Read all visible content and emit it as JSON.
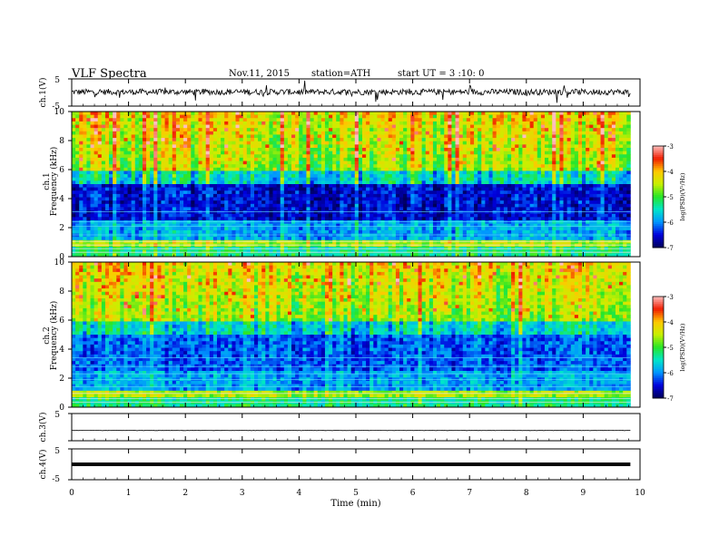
{
  "header": {
    "title": "VLF Spectra",
    "date": "Nov.11, 2015",
    "station": "station=ATH",
    "start": "start UT = 3 :10: 0"
  },
  "chart_data": [
    {
      "type": "line",
      "name": "waveform ch.1",
      "ylabel": "ch.1(V)",
      "ylim": [
        -5,
        5
      ],
      "yticks": [
        "5",
        "-5"
      ],
      "xlim": [
        0,
        10
      ],
      "x_end": 9.83,
      "baseline": 0.2,
      "color": "#000000"
    },
    {
      "type": "heatmap",
      "name": "spectrogram ch.1",
      "channel": "ch.1",
      "ylabel": "Frequency (kHz)",
      "ylim": [
        0,
        10
      ],
      "yticks": [
        "0",
        "2",
        "4",
        "6",
        "8",
        "10"
      ],
      "xlim": [
        0,
        10
      ],
      "x_end": 9.83,
      "colorbar": {
        "label": "log(PSD)(V²/Hz)",
        "range": [
          -7,
          -3
        ],
        "ticks": [
          "-3",
          "-4",
          "-5",
          "-6",
          "-7"
        ]
      }
    },
    {
      "type": "heatmap",
      "name": "spectrogram ch.2",
      "channel": "ch.2",
      "ylabel": "Frequency (kHz)",
      "ylim": [
        0,
        10
      ],
      "yticks": [
        "0",
        "2",
        "4",
        "6",
        "8",
        "10"
      ],
      "xlim": [
        0,
        10
      ],
      "x_end": 9.83,
      "colorbar": {
        "label": "log(PSD)(V²/Hz)",
        "range": [
          -7,
          -3
        ],
        "ticks": [
          "-3",
          "-4",
          "-5",
          "-6",
          "-7"
        ]
      }
    },
    {
      "type": "line",
      "name": "waveform ch.3",
      "ylabel": "ch.3(V)",
      "ylim": [
        -5,
        5
      ],
      "yticks": [
        "5"
      ],
      "xlim": [
        0,
        10
      ],
      "x_end": 9.83,
      "baseline": -1.2,
      "color": "#000000"
    },
    {
      "type": "line",
      "name": "waveform ch.4",
      "ylabel": "ch.4(V)",
      "ylim": [
        -5,
        5
      ],
      "yticks": [
        "5",
        "-5"
      ],
      "xlim": [
        0,
        10
      ],
      "x_end": 9.83,
      "baseline": 0.0,
      "color": "#000000"
    }
  ],
  "xaxis": {
    "label": "Time (min)",
    "ticks": [
      "0",
      "1",
      "2",
      "3",
      "4",
      "5",
      "6",
      "7",
      "8",
      "9",
      "10"
    ]
  }
}
